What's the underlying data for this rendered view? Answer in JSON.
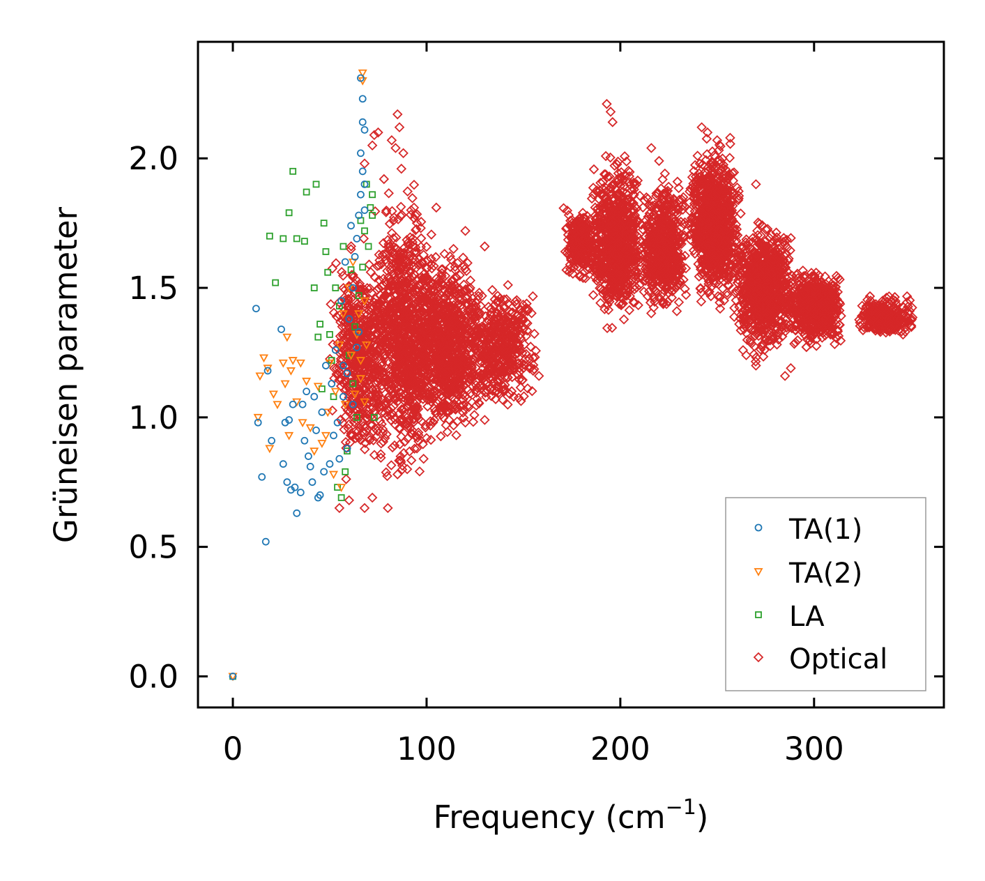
{
  "chart_data": {
    "type": "scatter",
    "title": "",
    "xlabel": "Frequency (cm",
    "xlabel_superscript": "−1",
    "xlabel_close": ")",
    "ylabel": "Grüneisen parameter",
    "xlim": [
      -18,
      367
    ],
    "ylim": [
      -0.12,
      2.45
    ],
    "xticks": [
      0,
      100,
      200,
      300
    ],
    "xtick_labels": [
      "0",
      "100",
      "200",
      "300"
    ],
    "yticks": [
      0.0,
      0.5,
      1.0,
      1.5,
      2.0
    ],
    "ytick_labels": [
      "0.0",
      "0.5",
      "1.0",
      "1.5",
      "2.0"
    ],
    "grid": false,
    "legend_position": "lower-right",
    "series": [
      {
        "name": "TA(1)",
        "marker": "circle",
        "color": "#1f77b4",
        "points": [
          [
            0,
            0
          ],
          [
            12,
            1.42
          ],
          [
            13,
            0.98
          ],
          [
            15,
            0.77
          ],
          [
            17,
            0.52
          ],
          [
            18,
            1.18
          ],
          [
            20,
            0.91
          ],
          [
            25,
            1.34
          ],
          [
            26,
            0.82
          ],
          [
            27,
            0.98
          ],
          [
            28,
            0.75
          ],
          [
            29,
            0.99
          ],
          [
            30,
            0.72
          ],
          [
            31,
            1.05
          ],
          [
            32,
            0.73
          ],
          [
            33,
            0.63
          ],
          [
            35,
            0.71
          ],
          [
            36,
            1.05
          ],
          [
            37,
            0.91
          ],
          [
            38,
            1.1
          ],
          [
            39,
            0.85
          ],
          [
            40,
            0.81
          ],
          [
            41,
            0.75
          ],
          [
            42,
            1.08
          ],
          [
            43,
            0.95
          ],
          [
            44,
            0.69
          ],
          [
            45,
            0.7
          ],
          [
            46,
            1.02
          ],
          [
            47,
            0.79
          ],
          [
            48,
            1.2
          ],
          [
            50,
            0.82
          ],
          [
            51,
            1.13
          ],
          [
            52,
            0.93
          ],
          [
            53,
            1.26
          ],
          [
            54,
            0.98
          ],
          [
            55,
            0.84
          ],
          [
            56,
            1.45
          ],
          [
            57,
            1.08
          ],
          [
            58,
            1.6
          ],
          [
            59,
            1.17
          ],
          [
            60,
            1.38
          ],
          [
            61,
            1.74
          ],
          [
            62,
            1.5
          ],
          [
            63,
            1.62
          ],
          [
            64,
            1.69
          ],
          [
            65,
            1.78
          ],
          [
            65,
            1.33
          ],
          [
            66,
            1.86
          ],
          [
            66,
            2.02
          ],
          [
            66,
            2.31
          ],
          [
            67,
            2.14
          ],
          [
            67,
            2.23
          ],
          [
            67,
            1.95
          ],
          [
            68,
            2.11
          ],
          [
            68,
            1.9
          ],
          [
            68,
            1.8
          ],
          [
            64,
            1.27
          ],
          [
            62,
            1.05
          ],
          [
            59,
            0.88
          ],
          [
            57,
            1.2
          ]
        ]
      },
      {
        "name": "TA(2)",
        "marker": "triangle-down",
        "color": "#ff7f0e",
        "points": [
          [
            0,
            0
          ],
          [
            13,
            1.0
          ],
          [
            14,
            1.16
          ],
          [
            16,
            1.23
          ],
          [
            18,
            1.19
          ],
          [
            19,
            0.88
          ],
          [
            21,
            1.09
          ],
          [
            23,
            1.05
          ],
          [
            26,
            1.21
          ],
          [
            27,
            1.13
          ],
          [
            28,
            1.31
          ],
          [
            29,
            0.93
          ],
          [
            30,
            1.18
          ],
          [
            31,
            1.22
          ],
          [
            33,
            1.06
          ],
          [
            35,
            1.21
          ],
          [
            36,
            0.98
          ],
          [
            38,
            1.14
          ],
          [
            40,
            0.96
          ],
          [
            42,
            0.87
          ],
          [
            44,
            1.12
          ],
          [
            46,
            0.9
          ],
          [
            48,
            0.93
          ],
          [
            49,
            1.02
          ],
          [
            50,
            1.21
          ],
          [
            52,
            0.78
          ],
          [
            53,
            1.1
          ],
          [
            55,
            1.28
          ],
          [
            56,
            0.73
          ],
          [
            57,
            1.4
          ],
          [
            58,
            1.05
          ],
          [
            60,
            1.5
          ],
          [
            61,
            1.24
          ],
          [
            62,
            1.6
          ],
          [
            63,
            1.09
          ],
          [
            64,
            1.32
          ],
          [
            65,
            1.4
          ],
          [
            66,
            1.15
          ],
          [
            66,
            1.22
          ],
          [
            67,
            2.33
          ],
          [
            67,
            2.3
          ],
          [
            68,
            1.06
          ],
          [
            68,
            1.45
          ],
          [
            69,
            1.28
          ]
        ]
      },
      {
        "name": "LA",
        "marker": "square",
        "color": "#2ca02c",
        "points": [
          [
            0,
            0
          ],
          [
            19,
            1.7
          ],
          [
            22,
            1.52
          ],
          [
            26,
            1.69
          ],
          [
            29,
            1.79
          ],
          [
            31,
            1.95
          ],
          [
            33,
            1.69
          ],
          [
            37,
            1.68
          ],
          [
            38,
            1.87
          ],
          [
            42,
            1.5
          ],
          [
            43,
            1.9
          ],
          [
            44,
            1.31
          ],
          [
            45,
            1.36
          ],
          [
            46,
            1.11
          ],
          [
            47,
            1.75
          ],
          [
            48,
            1.64
          ],
          [
            49,
            1.56
          ],
          [
            50,
            1.32
          ],
          [
            51,
            1.22
          ],
          [
            52,
            1.08
          ],
          [
            53,
            1.5
          ],
          [
            54,
            0.73
          ],
          [
            55,
            1.43
          ],
          [
            56,
            0.69
          ],
          [
            57,
            1.66
          ],
          [
            58,
            0.79
          ],
          [
            59,
            0.87
          ],
          [
            60,
            1.24
          ],
          [
            61,
            1.57
          ],
          [
            62,
            1.13
          ],
          [
            63,
            1.35
          ],
          [
            64,
            1.0
          ],
          [
            65,
            1.47
          ],
          [
            66,
            1.76
          ],
          [
            67,
            1.58
          ],
          [
            68,
            1.72
          ],
          [
            69,
            1.9
          ],
          [
            70,
            1.66
          ],
          [
            71,
            1.81
          ],
          [
            72,
            1.78
          ],
          [
            72,
            1.86
          ],
          [
            73,
            1.0
          ]
        ]
      },
      {
        "name": "Optical",
        "marker": "diamond",
        "color": "#d62728",
        "generator": "clusters",
        "clusters": [
          {
            "x": [
              50,
              80
            ],
            "y": [
              0.72,
              1.75
            ],
            "n": 500
          },
          {
            "x": [
              70,
              105
            ],
            "y": [
              0.7,
              1.95
            ],
            "n": 900
          },
          {
            "x": [
              90,
              130
            ],
            "y": [
              0.85,
              1.7
            ],
            "n": 900
          },
          {
            "x": [
              120,
              158
            ],
            "y": [
              1.0,
              1.55
            ],
            "n": 450
          },
          {
            "x": [
              170,
              190
            ],
            "y": [
              1.5,
              1.85
            ],
            "n": 260
          },
          {
            "x": [
              185,
              212
            ],
            "y": [
              1.3,
              2.05
            ],
            "n": 800
          },
          {
            "x": [
              210,
              235
            ],
            "y": [
              1.35,
              1.95
            ],
            "n": 600
          },
          {
            "x": [
              235,
              262
            ],
            "y": [
              1.4,
              2.1
            ],
            "n": 900
          },
          {
            "x": [
              258,
              290
            ],
            "y": [
              1.2,
              1.8
            ],
            "n": 800
          },
          {
            "x": [
              285,
              315
            ],
            "y": [
              1.25,
              1.6
            ],
            "n": 600
          },
          {
            "x": [
              322,
              352
            ],
            "y": [
              1.3,
              1.48
            ],
            "n": 300
          }
        ],
        "points": [
          [
            68,
            1.98
          ],
          [
            72,
            2.05
          ],
          [
            73,
            2.09
          ],
          [
            75,
            2.1
          ],
          [
            82,
            2.07
          ],
          [
            84,
            2.04
          ],
          [
            85,
            2.17
          ],
          [
            86,
            2.12
          ],
          [
            87,
            1.96
          ],
          [
            88,
            2.02
          ],
          [
            78,
            1.92
          ],
          [
            92,
            1.8
          ],
          [
            95,
            1.75
          ],
          [
            105,
            1.81
          ],
          [
            120,
            1.72
          ],
          [
            130,
            1.66
          ],
          [
            150,
            1.19
          ],
          [
            155,
            1.18
          ],
          [
            158,
            1.16
          ],
          [
            193,
            2.21
          ],
          [
            195,
            2.18
          ],
          [
            196,
            2.14
          ],
          [
            216,
            2.04
          ],
          [
            220,
            1.99
          ],
          [
            242,
            2.12
          ],
          [
            245,
            2.1
          ],
          [
            250,
            2.07
          ],
          [
            270,
            1.9
          ],
          [
            285,
            1.68
          ],
          [
            265,
            1.24
          ],
          [
            270,
            1.2
          ],
          [
            285,
            1.16
          ],
          [
            288,
            1.19
          ],
          [
            294,
            1.33
          ],
          [
            300,
            1.4
          ],
          [
            55,
            0.65
          ],
          [
            60,
            0.68
          ],
          [
            68,
            0.65
          ],
          [
            72,
            0.69
          ],
          [
            80,
            0.65
          ],
          [
            85,
            0.78
          ],
          [
            90,
            0.8
          ],
          [
            95,
            0.88
          ],
          [
            100,
            0.92
          ],
          [
            110,
            0.97
          ],
          [
            120,
            0.98
          ],
          [
            130,
            0.99
          ],
          [
            140,
            1.1
          ],
          [
            145,
            1.08
          ]
        ]
      }
    ]
  }
}
